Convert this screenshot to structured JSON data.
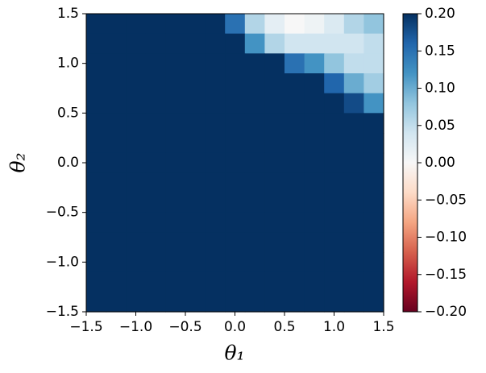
{
  "chart_data": {
    "type": "heatmap",
    "xlabel": "θ₁",
    "ylabel": "θ₂",
    "colormap": "RdBu",
    "x": [
      -1.4,
      -1.2,
      -1.0,
      -0.8,
      -0.6,
      -0.4,
      -0.2,
      0.0,
      0.2,
      0.4,
      0.6,
      0.8,
      1.0,
      1.2,
      1.4
    ],
    "y": [
      1.4,
      1.2,
      1.0,
      0.8,
      0.6,
      0.4,
      0.2,
      0.0,
      -0.2,
      -0.4,
      -0.6,
      -0.8,
      -1.0,
      -1.2,
      -1.4
    ],
    "values": [
      [
        0.2,
        0.2,
        0.2,
        0.2,
        0.2,
        0.2,
        0.2,
        0.15,
        0.06,
        0.02,
        0.0,
        0.01,
        0.03,
        0.06,
        0.08
      ],
      [
        0.2,
        0.2,
        0.2,
        0.2,
        0.2,
        0.2,
        0.2,
        0.2,
        0.12,
        0.06,
        0.04,
        0.04,
        0.04,
        0.04,
        0.05
      ],
      [
        0.2,
        0.2,
        0.2,
        0.2,
        0.2,
        0.2,
        0.2,
        0.2,
        0.2,
        0.2,
        0.15,
        0.12,
        0.08,
        0.05,
        0.05
      ],
      [
        0.2,
        0.2,
        0.2,
        0.2,
        0.2,
        0.2,
        0.2,
        0.2,
        0.2,
        0.2,
        0.2,
        0.2,
        0.16,
        0.1,
        0.07
      ],
      [
        0.2,
        0.2,
        0.2,
        0.2,
        0.2,
        0.2,
        0.2,
        0.2,
        0.2,
        0.2,
        0.2,
        0.2,
        0.2,
        0.18,
        0.12
      ],
      [
        0.2,
        0.2,
        0.2,
        0.2,
        0.2,
        0.2,
        0.2,
        0.2,
        0.2,
        0.2,
        0.2,
        0.2,
        0.2,
        0.2,
        0.2
      ],
      [
        0.2,
        0.2,
        0.2,
        0.2,
        0.2,
        0.2,
        0.2,
        0.2,
        0.2,
        0.2,
        0.2,
        0.2,
        0.2,
        0.2,
        0.2
      ],
      [
        0.2,
        0.2,
        0.2,
        0.2,
        0.2,
        0.2,
        0.2,
        0.2,
        0.2,
        0.2,
        0.2,
        0.2,
        0.2,
        0.2,
        0.2
      ],
      [
        0.2,
        0.2,
        0.2,
        0.2,
        0.2,
        0.2,
        0.2,
        0.2,
        0.2,
        0.2,
        0.2,
        0.2,
        0.2,
        0.2,
        0.2
      ],
      [
        0.2,
        0.2,
        0.2,
        0.2,
        0.2,
        0.2,
        0.2,
        0.2,
        0.2,
        0.2,
        0.2,
        0.2,
        0.2,
        0.2,
        0.2
      ],
      [
        0.2,
        0.2,
        0.2,
        0.2,
        0.2,
        0.2,
        0.2,
        0.2,
        0.2,
        0.2,
        0.2,
        0.2,
        0.2,
        0.2,
        0.2
      ],
      [
        0.2,
        0.2,
        0.2,
        0.2,
        0.2,
        0.2,
        0.2,
        0.2,
        0.2,
        0.2,
        0.2,
        0.2,
        0.2,
        0.2,
        0.2
      ],
      [
        0.2,
        0.2,
        0.2,
        0.2,
        0.2,
        0.2,
        0.2,
        0.2,
        0.2,
        0.2,
        0.2,
        0.2,
        0.2,
        0.2,
        0.2
      ],
      [
        0.2,
        0.2,
        0.2,
        0.2,
        0.2,
        0.2,
        0.2,
        0.2,
        0.2,
        0.2,
        0.2,
        0.2,
        0.2,
        0.2,
        0.2
      ],
      [
        0.2,
        0.2,
        0.2,
        0.2,
        0.2,
        0.2,
        0.2,
        0.2,
        0.2,
        0.2,
        0.2,
        0.2,
        0.2,
        0.2,
        0.2
      ]
    ],
    "xlim": [
      -1.5,
      1.5
    ],
    "ylim": [
      -1.5,
      1.5
    ],
    "xticks": [
      {
        "value": -1.5,
        "label": "−1.5"
      },
      {
        "value": -1.0,
        "label": "−1.0"
      },
      {
        "value": -0.5,
        "label": "−0.5"
      },
      {
        "value": 0.0,
        "label": "0.0"
      },
      0.5,
      {
        "value": 1.0,
        "label": "1.0"
      },
      1.5
    ],
    "yticks": [
      {
        "value": -1.5,
        "label": "−1.5"
      },
      {
        "value": -1.0,
        "label": "−1.0"
      },
      {
        "value": -0.5,
        "label": "−0.5"
      },
      {
        "value": 0.0,
        "label": "0.0"
      },
      0.5,
      {
        "value": 1.0,
        "label": "1.0"
      },
      1.5
    ],
    "clim": [
      -0.2,
      0.2
    ],
    "cticks": [
      {
        "value": -0.2,
        "label": "−0.20"
      },
      {
        "value": -0.15,
        "label": "−0.15"
      },
      {
        "value": -0.1,
        "label": "−0.10"
      },
      {
        "value": -0.05,
        "label": "−0.05"
      },
      {
        "value": 0.0,
        "label": "0.00"
      },
      0.05,
      {
        "value": 0.1,
        "label": "0.10"
      },
      0.15,
      {
        "value": 0.2,
        "label": "0.20"
      }
    ]
  }
}
